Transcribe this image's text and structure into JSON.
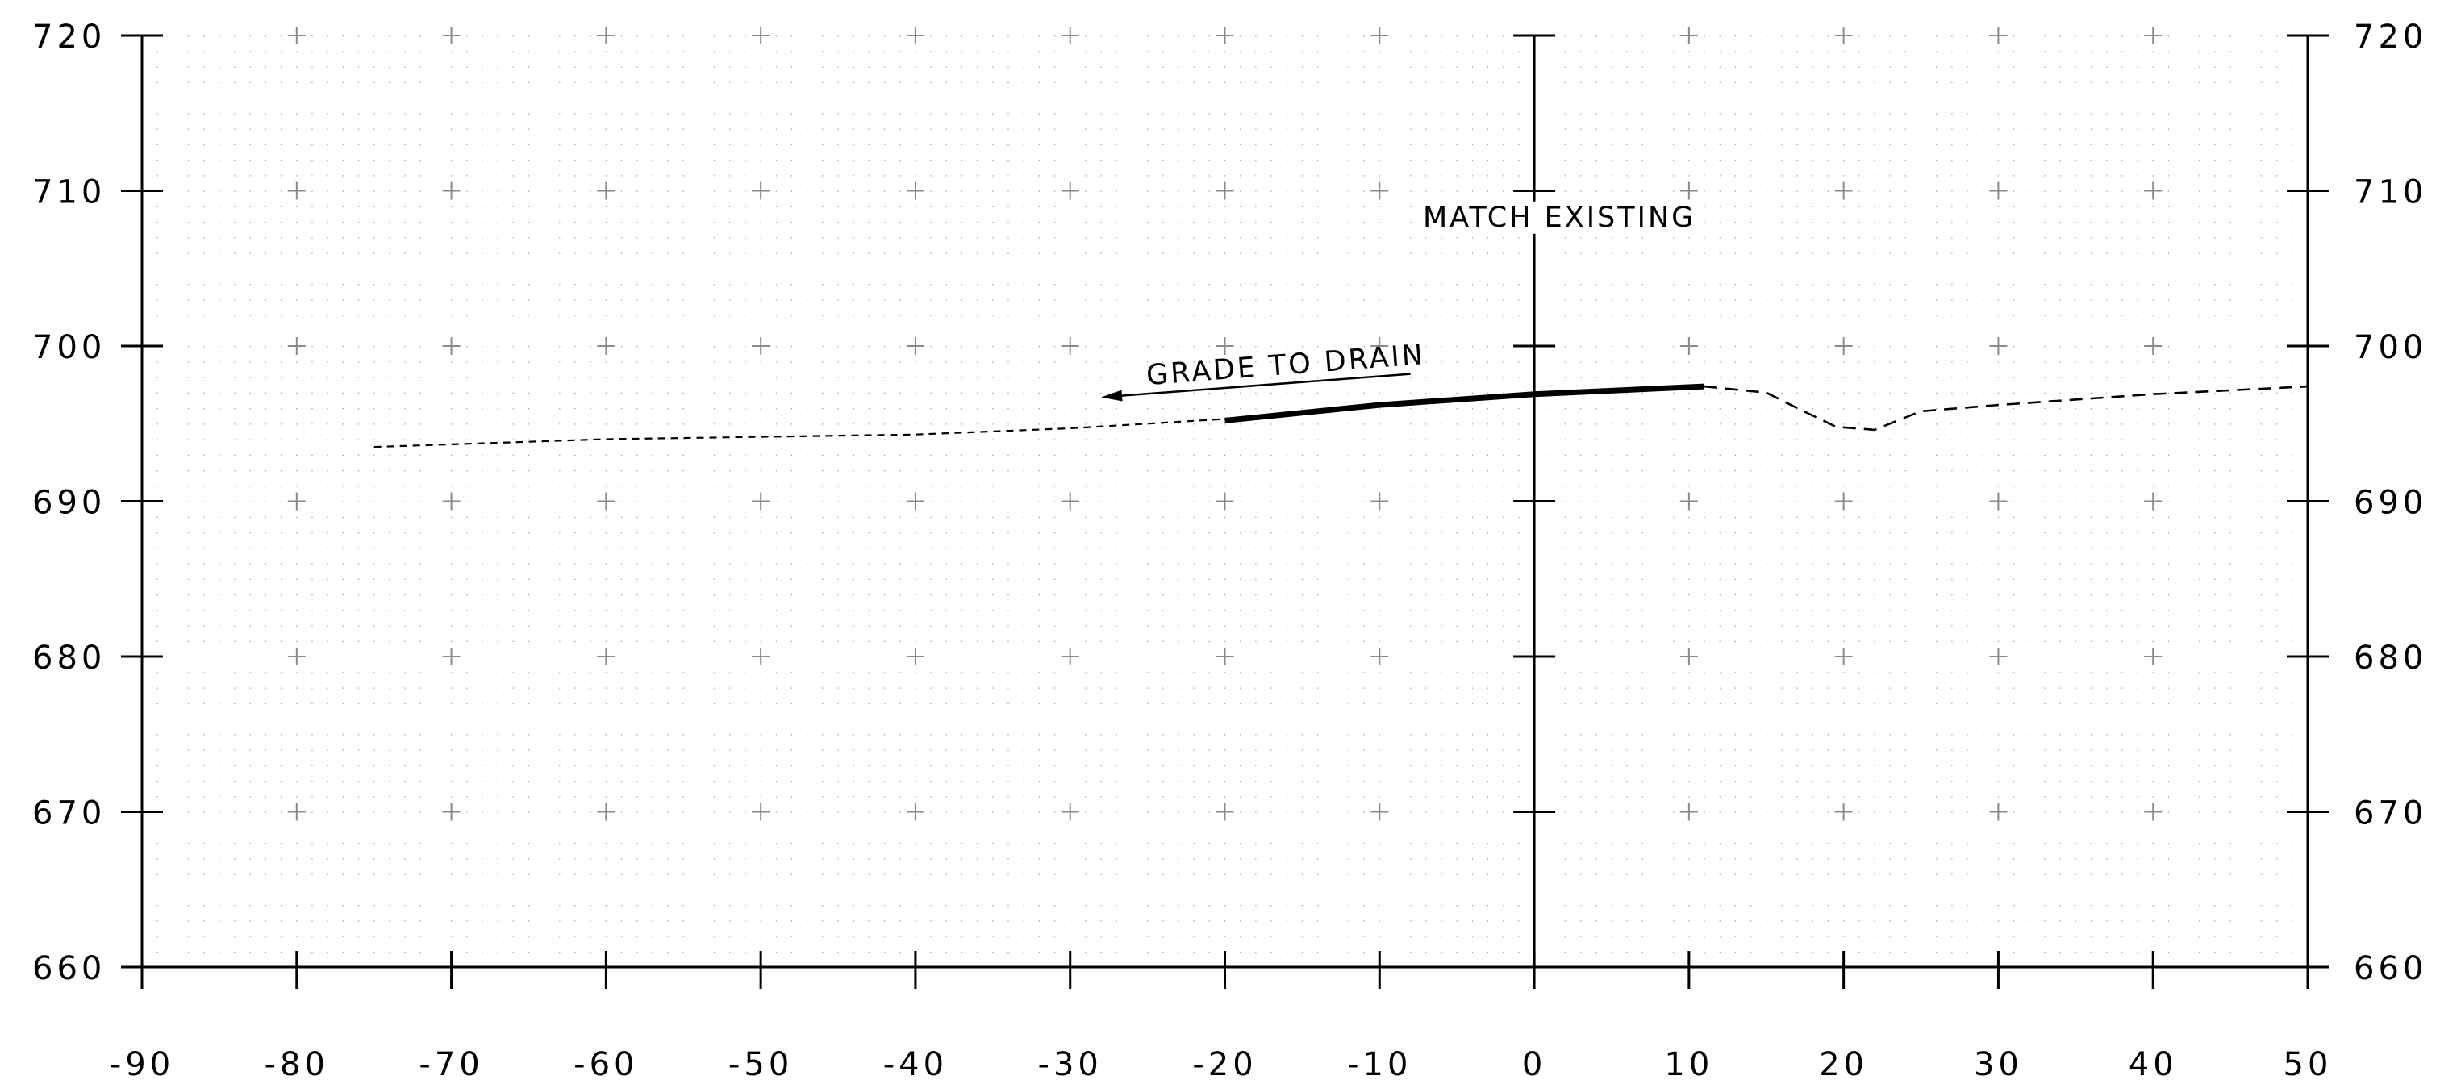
{
  "chart_data": {
    "type": "line",
    "title": "",
    "xlabel": "",
    "ylabel": "",
    "xlim": [
      -90,
      50
    ],
    "ylim": [
      660,
      720
    ],
    "x_ticks": [
      "-90",
      "-80",
      "-70",
      "-60",
      "-50",
      "-40",
      "-30",
      "-20",
      "-10",
      "0",
      "10",
      "20",
      "30",
      "40",
      "50"
    ],
    "y_ticks": [
      "660",
      "670",
      "680",
      "690",
      "700",
      "710",
      "720"
    ],
    "grid": "dotted, 1 ft x 1 ft, with crosshair marks every 10 ft",
    "centerline_x": 0,
    "series": [
      {
        "style": "dashed-thin",
        "points": [
          [
            -75,
            693.5
          ],
          [
            -60,
            694.0
          ],
          [
            -40,
            694.3
          ],
          [
            -30,
            694.7
          ],
          [
            -20,
            695.3
          ]
        ]
      },
      {
        "style": "solid-thick",
        "points": [
          [
            -20,
            695.2
          ],
          [
            -10,
            696.2
          ],
          [
            0,
            696.9
          ],
          [
            11,
            697.4
          ]
        ]
      },
      {
        "style": "dashed",
        "points": [
          [
            11,
            697.4
          ],
          [
            15,
            697.0
          ],
          [
            17,
            696.0
          ],
          [
            19.5,
            694.8
          ],
          [
            22,
            694.6
          ],
          [
            25,
            695.8
          ],
          [
            30,
            696.2
          ],
          [
            40,
            696.9
          ],
          [
            50,
            697.4
          ]
        ]
      }
    ],
    "annotations": [
      {
        "text": "GRADE TO DRAIN",
        "arrow_from": [
          -8,
          698.2
        ],
        "arrow_to": [
          -28,
          696.7
        ]
      },
      {
        "text": "MATCH EXISTING"
      }
    ]
  }
}
